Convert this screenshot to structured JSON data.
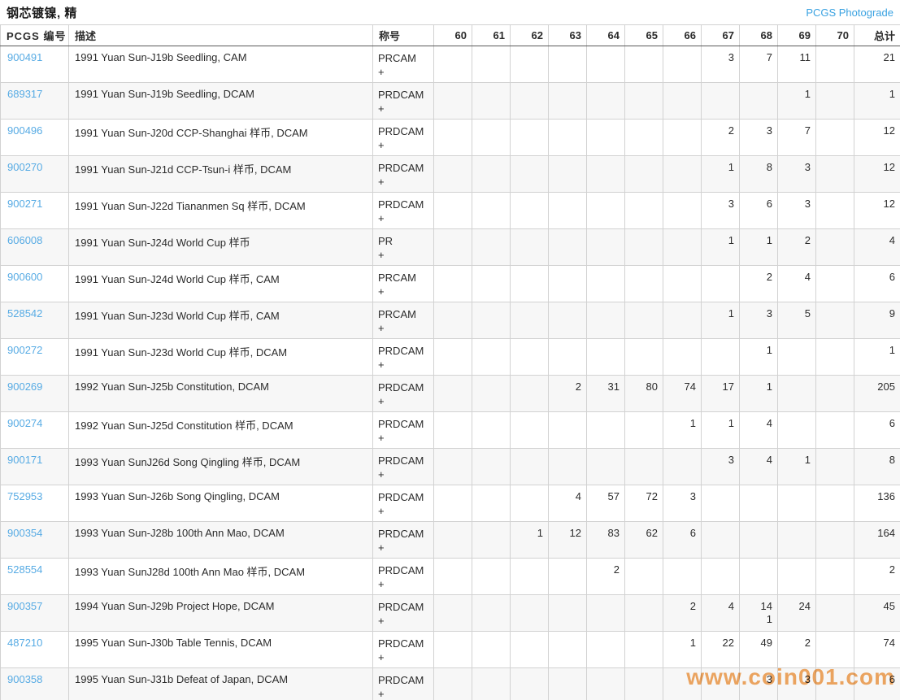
{
  "page": {
    "title": "钢芯镀镍, 精",
    "photograde_link": "PCGS Photograde",
    "watermark": "www.coin001.com"
  },
  "colors": {
    "link_blue": "#57ABE4",
    "photograde_blue": "#3AA2E1",
    "watermark_orange": "#F2A862"
  },
  "table": {
    "headers": {
      "pcgs": "PCGS 编号",
      "desc": "描述",
      "designation": "称号",
      "grades": [
        "60",
        "61",
        "62",
        "63",
        "64",
        "65",
        "66",
        "67",
        "68",
        "69",
        "70"
      ],
      "total": "总计"
    },
    "rows": [
      {
        "pcgs": "900491",
        "desc": "1991 Yuan Sun-J19b Seedling, CAM",
        "des": "PRCAM",
        "plus": "+",
        "grades": [
          "",
          "",
          "",
          "",
          "",
          "",
          "",
          "3",
          "7",
          "11",
          ""
        ],
        "total": "21"
      },
      {
        "pcgs": "689317",
        "desc": "1991 Yuan Sun-J19b Seedling, DCAM",
        "des": "PRDCAM",
        "plus": "+",
        "grades": [
          "",
          "",
          "",
          "",
          "",
          "",
          "",
          "",
          "",
          "1",
          ""
        ],
        "total": "1"
      },
      {
        "pcgs": "900496",
        "desc": "1991 Yuan Sun-J20d CCP-Shanghai 样币, DCAM",
        "des": "PRDCAM",
        "plus": "+",
        "grades": [
          "",
          "",
          "",
          "",
          "",
          "",
          "",
          "2",
          "3",
          "7",
          ""
        ],
        "total": "12"
      },
      {
        "pcgs": "900270",
        "desc": "1991 Yuan Sun-J21d CCP-Tsun-i 样币, DCAM",
        "des": "PRDCAM",
        "plus": "+",
        "grades": [
          "",
          "",
          "",
          "",
          "",
          "",
          "",
          "1",
          "8",
          "3",
          ""
        ],
        "total": "12"
      },
      {
        "pcgs": "900271",
        "desc": "1991 Yuan Sun-J22d Tiananmen Sq 样币, DCAM",
        "des": "PRDCAM",
        "plus": "+",
        "grades": [
          "",
          "",
          "",
          "",
          "",
          "",
          "",
          "3",
          "6",
          "3",
          ""
        ],
        "total": "12"
      },
      {
        "pcgs": "606008",
        "desc": "1991 Yuan Sun-J24d World Cup 样币",
        "des": "PR",
        "plus": "+",
        "grades": [
          "",
          "",
          "",
          "",
          "",
          "",
          "",
          "1",
          "1",
          "2",
          ""
        ],
        "total": "4"
      },
      {
        "pcgs": "900600",
        "desc": "1991 Yuan Sun-J24d World Cup 样币, CAM",
        "des": "PRCAM",
        "plus": "+",
        "grades": [
          "",
          "",
          "",
          "",
          "",
          "",
          "",
          "",
          "2",
          "4",
          ""
        ],
        "total": "6"
      },
      {
        "pcgs": "528542",
        "desc": "1991 Yuan Sun-J23d World Cup 样币, CAM",
        "des": "PRCAM",
        "plus": "+",
        "grades": [
          "",
          "",
          "",
          "",
          "",
          "",
          "",
          "1",
          "3",
          "5",
          ""
        ],
        "total": "9"
      },
      {
        "pcgs": "900272",
        "desc": "1991 Yuan Sun-J23d World Cup 样币, DCAM",
        "des": "PRDCAM",
        "plus": "+",
        "grades": [
          "",
          "",
          "",
          "",
          "",
          "",
          "",
          "",
          "1",
          "",
          ""
        ],
        "total": "1"
      },
      {
        "pcgs": "900269",
        "desc": "1992 Yuan Sun-J25b Constitution, DCAM",
        "des": "PRDCAM",
        "plus": "+",
        "grades": [
          "",
          "",
          "",
          "2",
          "31",
          "80",
          "74",
          "17",
          "1",
          "",
          ""
        ],
        "total": "205"
      },
      {
        "pcgs": "900274",
        "desc": "1992 Yuan Sun-J25d Constitution 样币, DCAM",
        "des": "PRDCAM",
        "plus": "+",
        "grades": [
          "",
          "",
          "",
          "",
          "",
          "",
          "1",
          "1",
          "4",
          "",
          ""
        ],
        "total": "6"
      },
      {
        "pcgs": "900171",
        "desc": "1993 Yuan SunJ26d Song Qingling 样币, DCAM",
        "des": "PRDCAM",
        "plus": "+",
        "grades": [
          "",
          "",
          "",
          "",
          "",
          "",
          "",
          "3",
          "4",
          "1",
          ""
        ],
        "total": "8"
      },
      {
        "pcgs": "752953",
        "desc": "1993 Yuan Sun-J26b Song Qingling, DCAM",
        "des": "PRDCAM",
        "plus": "+",
        "grades": [
          "",
          "",
          "",
          "4",
          "57",
          "72",
          "3",
          "",
          "",
          "",
          ""
        ],
        "total": "136"
      },
      {
        "pcgs": "900354",
        "desc": "1993 Yuan Sun-J28b 100th Ann Mao, DCAM",
        "des": "PRDCAM",
        "plus": "+",
        "grades": [
          "",
          "",
          "1",
          "12",
          "83",
          "62",
          "6",
          "",
          "",
          "",
          ""
        ],
        "total": "164"
      },
      {
        "pcgs": "528554",
        "desc": "1993 Yuan SunJ28d 100th Ann Mao 样币, DCAM",
        "des": "PRDCAM",
        "plus": "+",
        "grades": [
          "",
          "",
          "",
          "",
          "2",
          "",
          "",
          "",
          "",
          "",
          ""
        ],
        "total": "2"
      },
      {
        "pcgs": "900357",
        "desc": "1994 Yuan Sun-J29b Project Hope, DCAM",
        "des": "PRDCAM",
        "plus": "+",
        "grades": [
          "",
          "",
          "",
          "",
          "",
          "",
          "2",
          "4",
          "14\n1",
          "24",
          ""
        ],
        "total": "45"
      },
      {
        "pcgs": "487210",
        "desc": "1995 Yuan Sun-J30b Table Tennis, DCAM",
        "des": "PRDCAM",
        "plus": "+",
        "grades": [
          "",
          "",
          "",
          "",
          "",
          "",
          "1",
          "22",
          "49",
          "2",
          ""
        ],
        "total": "74"
      },
      {
        "pcgs": "900358",
        "desc": "1995 Yuan Sun-J31b Defeat of Japan, DCAM",
        "des": "PRDCAM",
        "plus": "+",
        "grades": [
          "",
          "",
          "",
          "",
          "",
          "",
          "",
          "",
          "3",
          "3",
          ""
        ],
        "total": "6"
      }
    ]
  }
}
